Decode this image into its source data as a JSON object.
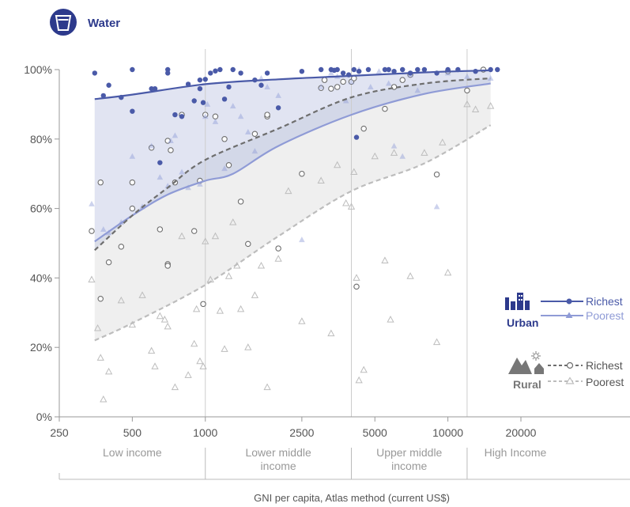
{
  "header": {
    "title": "Water",
    "icon": "water-glass-icon"
  },
  "colors": {
    "urban_richest": "#4a5aa8",
    "urban_poorest": "#8f9bd6",
    "urban_band": "#dfe3f1",
    "rural_richest": "#6e6e6e",
    "rural_poorest": "#bdbdbd",
    "rural_band": "#efefef",
    "icon_bg": "#2d3a8c",
    "rural_icon": "#777777"
  },
  "chart_data": {
    "type": "scatter",
    "xlabel": "GNI per capita, Atlas method (current US$)",
    "ylabel": "",
    "x_scale": "log",
    "xlim": [
      250,
      30000
    ],
    "ylim": [
      0,
      100
    ],
    "x_ticks": [
      250,
      500,
      1000,
      2500,
      5000,
      10000,
      20000
    ],
    "x_tick_labels": [
      "250",
      "500",
      "1000",
      "2500",
      "5000",
      "10000",
      "20000"
    ],
    "y_ticks": [
      0,
      20,
      40,
      60,
      80,
      100
    ],
    "y_tick_labels": [
      "0%",
      "20%",
      "40%",
      "60%",
      "80%",
      "100%"
    ],
    "income_groups": [
      {
        "label": [
          "Low income"
        ],
        "from": 250,
        "to": 1000
      },
      {
        "label": [
          "Lower middle",
          "income"
        ],
        "from": 1000,
        "to": 4000
      },
      {
        "label": [
          "Upper middle",
          "income"
        ],
        "from": 4000,
        "to": 12000
      },
      {
        "label": [
          "High Income"
        ],
        "from": 12000,
        "to": 30000
      }
    ],
    "dividers": [
      1000,
      4000,
      12000
    ],
    "legend": {
      "groups": [
        {
          "group": "Urban",
          "entries": [
            {
              "label": "Richest",
              "key": "urban_richest"
            },
            {
              "label": "Poorest",
              "key": "urban_poorest"
            }
          ]
        },
        {
          "group": "Rural",
          "entries": [
            {
              "label": "Richest",
              "key": "rural_richest"
            },
            {
              "label": "Poorest",
              "key": "rural_poorest"
            }
          ]
        }
      ],
      "position": "right"
    },
    "trend_lines": [
      {
        "key": "urban_richest",
        "x": [
          350,
          500,
          1000,
          2000,
          4000,
          8000,
          15000
        ],
        "y": [
          91.5,
          92.8,
          95.8,
          97.2,
          98.2,
          99.2,
          99.8
        ]
      },
      {
        "key": "urban_poorest",
        "x": [
          350,
          500,
          700,
          1000,
          1300,
          2000,
          4000,
          8000,
          15000
        ],
        "y": [
          50.5,
          58,
          64,
          68,
          70,
          78,
          87,
          93,
          96
        ]
      },
      {
        "key": "rural_richest",
        "x": [
          350,
          500,
          700,
          1000,
          2000,
          4000,
          8000,
          15000
        ],
        "y": [
          48,
          58,
          66,
          74,
          83,
          92,
          96,
          97.5
        ]
      },
      {
        "key": "rural_poorest",
        "x": [
          350,
          500,
          1000,
          2000,
          4000,
          8000,
          15000
        ],
        "y": [
          22,
          27,
          38,
          52,
          65,
          73,
          84
        ]
      }
    ],
    "series": [
      {
        "key": "urban_richest",
        "marker": "filled-circle",
        "points": [
          [
            350,
            99
          ],
          [
            380,
            92.5
          ],
          [
            400,
            95.5
          ],
          [
            450,
            92
          ],
          [
            500,
            88
          ],
          [
            500,
            100
          ],
          [
            600,
            94.5
          ],
          [
            620,
            94.5
          ],
          [
            650,
            73.2
          ],
          [
            700,
            100
          ],
          [
            700,
            99
          ],
          [
            750,
            87
          ],
          [
            800,
            86.5
          ],
          [
            850,
            95.8
          ],
          [
            900,
            91
          ],
          [
            950,
            97
          ],
          [
            950,
            94.5
          ],
          [
            980,
            90.5
          ],
          [
            1000,
            97.2
          ],
          [
            1050,
            99
          ],
          [
            1100,
            99.6
          ],
          [
            1150,
            100
          ],
          [
            1200,
            91.5
          ],
          [
            1250,
            95
          ],
          [
            1300,
            100
          ],
          [
            1400,
            99
          ],
          [
            1600,
            97
          ],
          [
            1700,
            95.5
          ],
          [
            1800,
            99
          ],
          [
            2000,
            89
          ],
          [
            2500,
            99.5
          ],
          [
            3000,
            100
          ],
          [
            3300,
            100
          ],
          [
            3400,
            99.8
          ],
          [
            3500,
            100
          ],
          [
            3700,
            99
          ],
          [
            3900,
            98.5
          ],
          [
            4100,
            100
          ],
          [
            4200,
            80.5
          ],
          [
            4300,
            99.5
          ],
          [
            4700,
            100
          ],
          [
            5500,
            100
          ],
          [
            5700,
            100
          ],
          [
            6000,
            99.5
          ],
          [
            6500,
            100
          ],
          [
            7000,
            99
          ],
          [
            7500,
            100
          ],
          [
            8000,
            100
          ],
          [
            9000,
            99
          ],
          [
            10000,
            100
          ],
          [
            11000,
            100
          ],
          [
            13000,
            99.5
          ],
          [
            15000,
            100
          ],
          [
            16000,
            100
          ]
        ]
      },
      {
        "key": "urban_poorest",
        "marker": "filled-triangle",
        "points": [
          [
            340,
            61.3
          ],
          [
            380,
            54
          ],
          [
            400,
            53
          ],
          [
            450,
            56
          ],
          [
            500,
            75
          ],
          [
            550,
            60.5
          ],
          [
            600,
            78
          ],
          [
            650,
            69
          ],
          [
            700,
            66.5
          ],
          [
            720,
            79.5
          ],
          [
            750,
            81
          ],
          [
            800,
            70.5
          ],
          [
            850,
            66
          ],
          [
            950,
            67
          ],
          [
            1000,
            86.5
          ],
          [
            1020,
            90
          ],
          [
            1100,
            85
          ],
          [
            1200,
            71.5
          ],
          [
            1300,
            89.5
          ],
          [
            1400,
            86.5
          ],
          [
            1500,
            82
          ],
          [
            1600,
            76.5
          ],
          [
            1700,
            97.5
          ],
          [
            1800,
            95
          ],
          [
            2000,
            92.5
          ],
          [
            2500,
            51
          ],
          [
            3000,
            95
          ],
          [
            3300,
            99
          ],
          [
            3500,
            98
          ],
          [
            3800,
            91
          ],
          [
            4000,
            96.5
          ],
          [
            4300,
            100
          ],
          [
            4800,
            95
          ],
          [
            5200,
            99.5
          ],
          [
            5700,
            96
          ],
          [
            6000,
            78
          ],
          [
            6500,
            75
          ],
          [
            7000,
            98.5
          ],
          [
            7500,
            94
          ],
          [
            9000,
            60.5
          ],
          [
            10000,
            99
          ],
          [
            12000,
            98
          ],
          [
            15000,
            97.5
          ]
        ]
      },
      {
        "key": "rural_richest",
        "marker": "open-circle",
        "points": [
          [
            340,
            53.5
          ],
          [
            370,
            67.5
          ],
          [
            370,
            34
          ],
          [
            400,
            44.5
          ],
          [
            450,
            49
          ],
          [
            500,
            60
          ],
          [
            500,
            67.5
          ],
          [
            600,
            77.5
          ],
          [
            650,
            54
          ],
          [
            700,
            44
          ],
          [
            700,
            43.5
          ],
          [
            700,
            79.5
          ],
          [
            720,
            76.8
          ],
          [
            750,
            67.5
          ],
          [
            800,
            87
          ],
          [
            900,
            53.5
          ],
          [
            950,
            68
          ],
          [
            980,
            32.5
          ],
          [
            1000,
            87
          ],
          [
            1100,
            86.5
          ],
          [
            1200,
            80
          ],
          [
            1250,
            72.5
          ],
          [
            1400,
            62
          ],
          [
            1500,
            49.8
          ],
          [
            1600,
            81.5
          ],
          [
            1800,
            86.5
          ],
          [
            1800,
            87
          ],
          [
            2000,
            48.5
          ],
          [
            2500,
            70
          ],
          [
            3000,
            94.7
          ],
          [
            3100,
            97
          ],
          [
            3300,
            94.5
          ],
          [
            3500,
            95
          ],
          [
            3700,
            96.5
          ],
          [
            4000,
            96.5
          ],
          [
            4100,
            97.5
          ],
          [
            4200,
            37.5
          ],
          [
            4500,
            83
          ],
          [
            5500,
            88.7
          ],
          [
            6000,
            95
          ],
          [
            6500,
            97
          ],
          [
            7000,
            98.5
          ],
          [
            9000,
            69.8
          ],
          [
            10000,
            99.5
          ],
          [
            12000,
            94
          ],
          [
            14000,
            100
          ]
        ]
      },
      {
        "key": "rural_poorest",
        "marker": "open-triangle",
        "points": [
          [
            340,
            39.5
          ],
          [
            360,
            25.5
          ],
          [
            370,
            17
          ],
          [
            380,
            5
          ],
          [
            400,
            13
          ],
          [
            450,
            33.5
          ],
          [
            500,
            26.5
          ],
          [
            550,
            35
          ],
          [
            600,
            19
          ],
          [
            620,
            14.5
          ],
          [
            650,
            29
          ],
          [
            680,
            28
          ],
          [
            700,
            26
          ],
          [
            750,
            8.5
          ],
          [
            800,
            52
          ],
          [
            850,
            12
          ],
          [
            900,
            21
          ],
          [
            920,
            31
          ],
          [
            950,
            16
          ],
          [
            980,
            14.5
          ],
          [
            1000,
            50.5
          ],
          [
            1050,
            39.5
          ],
          [
            1100,
            52
          ],
          [
            1150,
            30.5
          ],
          [
            1200,
            19.5
          ],
          [
            1250,
            40.5
          ],
          [
            1300,
            56
          ],
          [
            1350,
            43.5
          ],
          [
            1400,
            31
          ],
          [
            1500,
            20
          ],
          [
            1600,
            35
          ],
          [
            1700,
            43.5
          ],
          [
            1800,
            8.5
          ],
          [
            2000,
            45.5
          ],
          [
            2200,
            65
          ],
          [
            2500,
            27.5
          ],
          [
            3000,
            68
          ],
          [
            3300,
            24
          ],
          [
            3500,
            72.5
          ],
          [
            3800,
            61.5
          ],
          [
            4000,
            60.5
          ],
          [
            4100,
            70.5
          ],
          [
            4200,
            40
          ],
          [
            4300,
            10.5
          ],
          [
            4500,
            13.5
          ],
          [
            5000,
            75
          ],
          [
            5500,
            45
          ],
          [
            5800,
            28
          ],
          [
            6000,
            76
          ],
          [
            7000,
            40.5
          ],
          [
            8000,
            76
          ],
          [
            9000,
            21.5
          ],
          [
            9500,
            79
          ],
          [
            10000,
            41.5
          ],
          [
            12000,
            90
          ],
          [
            13000,
            88.5
          ],
          [
            15000,
            89.5
          ]
        ]
      }
    ]
  }
}
